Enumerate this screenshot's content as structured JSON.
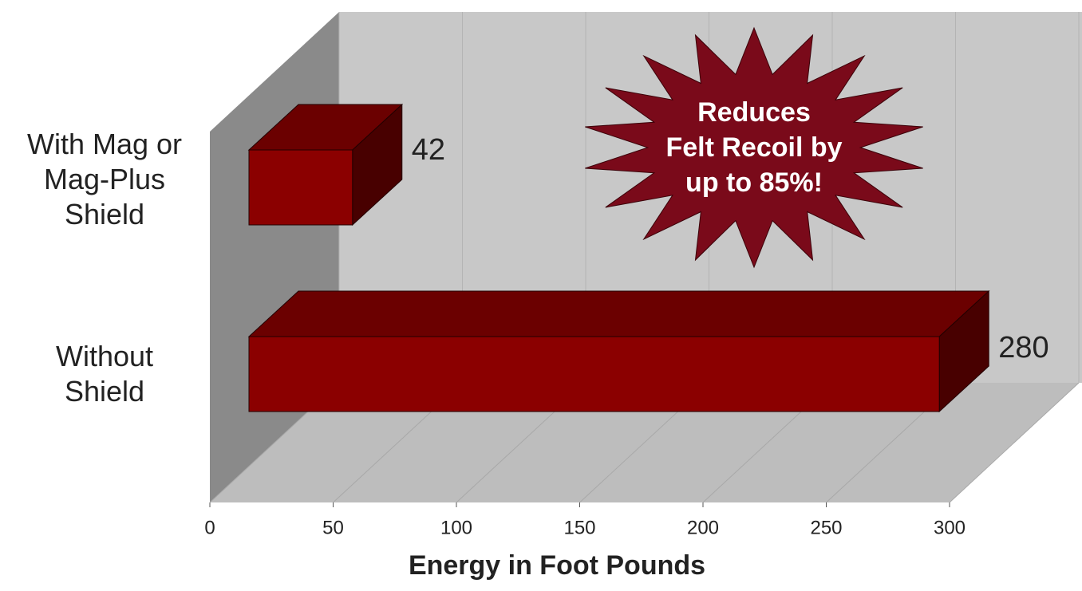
{
  "chart_data": {
    "type": "bar3d_horizontal",
    "categories": [
      "With Mag or\nMag-Plus\nShield",
      "Without\nShield"
    ],
    "values": [
      42,
      280
    ],
    "color": "#8b0000",
    "xlim": [
      0,
      300
    ],
    "xticks": [
      0,
      50,
      100,
      150,
      200,
      250,
      300
    ],
    "xlabel": "Energy in Foot Pounds",
    "annotation": "Reduces\nFelt Recoil by\nup to 85%!",
    "grid": true
  }
}
